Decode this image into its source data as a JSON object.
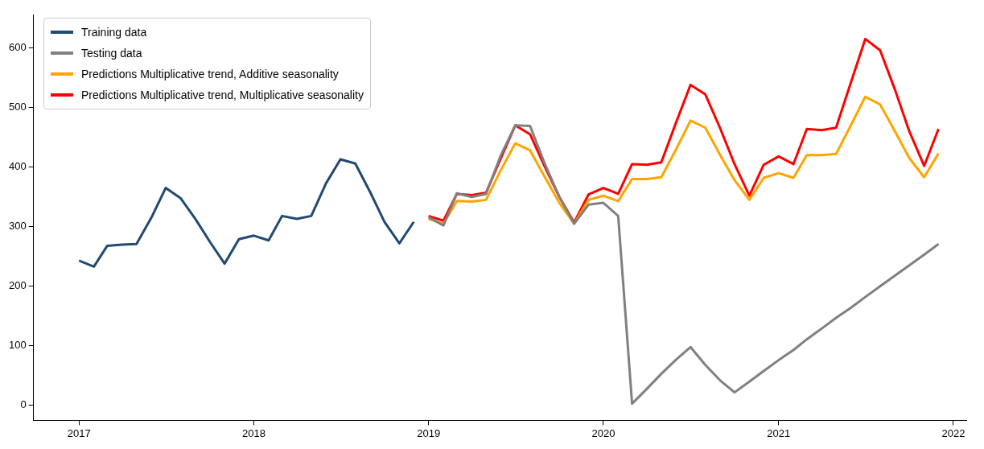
{
  "chart_data": {
    "type": "line",
    "xlim": [
      "2016-09-28",
      "2022-01-28"
    ],
    "xticks": [
      "2017",
      "2018",
      "2019",
      "2020",
      "2021",
      "2022"
    ],
    "ylim": [
      -25,
      655
    ],
    "yticks": [
      0,
      100,
      200,
      300,
      400,
      500,
      600
    ],
    "grid": false,
    "legend": "top left",
    "marker": "none",
    "line_style": "solid",
    "series": [
      {
        "name": "Training data",
        "color": "#204a73",
        "x": [
          "2017-01",
          "2017-02",
          "2017-03",
          "2017-04",
          "2017-05",
          "2017-06",
          "2017-07",
          "2017-08",
          "2017-09",
          "2017-10",
          "2017-11",
          "2017-12",
          "2018-01",
          "2018-02",
          "2018-03",
          "2018-04",
          "2018-05",
          "2018-06",
          "2018-07",
          "2018-08",
          "2018-09",
          "2018-10",
          "2018-11",
          "2018-12"
        ],
        "values": [
          243,
          233,
          268,
          270,
          271,
          315,
          365,
          348,
          313,
          275,
          238,
          279,
          285,
          277,
          318,
          313,
          318,
          373,
          413,
          406,
          358,
          308,
          272,
          308
        ]
      },
      {
        "name": "Testing data",
        "color": "#808080",
        "x": [
          "2019-01",
          "2019-02",
          "2019-03",
          "2019-04",
          "2019-05",
          "2019-06",
          "2019-07",
          "2019-08",
          "2019-09",
          "2019-10",
          "2019-11",
          "2019-12",
          "2020-01",
          "2020-02",
          "2020-03",
          "2020-04",
          "2020-05",
          "2020-06",
          "2020-07",
          "2020-08",
          "2020-09",
          "2020-10",
          "2020-11",
          "2020-12",
          "2021-01",
          "2021-02",
          "2021-03",
          "2021-04",
          "2021-05",
          "2021-06",
          "2021-07",
          "2021-08",
          "2021-09",
          "2021-10",
          "2021-11",
          "2021-12"
        ],
        "values": [
          316,
          302,
          356,
          350,
          355,
          420,
          470,
          469,
          405,
          350,
          305,
          337,
          340,
          318,
          3,
          28,
          53,
          77,
          98,
          68,
          42,
          22,
          40,
          58,
          76,
          93,
          111,
          129,
          147,
          164,
          182,
          200,
          218,
          235,
          253,
          271
        ]
      },
      {
        "name": "Predictions Multiplicative trend, Additive seasonality",
        "color": "#ffa500",
        "x": [
          "2019-01",
          "2019-02",
          "2019-03",
          "2019-04",
          "2019-05",
          "2019-06",
          "2019-07",
          "2019-08",
          "2019-09",
          "2019-10",
          "2019-11",
          "2019-12",
          "2020-01",
          "2020-02",
          "2020-03",
          "2020-04",
          "2020-05",
          "2020-06",
          "2020-07",
          "2020-08",
          "2020-09",
          "2020-10",
          "2020-11",
          "2020-12",
          "2021-01",
          "2021-02",
          "2021-03",
          "2021-04",
          "2021-05",
          "2021-06",
          "2021-07",
          "2021-08",
          "2021-09",
          "2021-10",
          "2021-11",
          "2021-12"
        ],
        "values": [
          313,
          305,
          343,
          342,
          345,
          395,
          440,
          428,
          383,
          340,
          305,
          345,
          352,
          343,
          380,
          380,
          383,
          430,
          478,
          466,
          420,
          378,
          345,
          382,
          390,
          382,
          420,
          420,
          422,
          470,
          518,
          505,
          460,
          415,
          383,
          423
        ]
      },
      {
        "name": "Predictions Multiplicative trend, Multiplicative seasonality",
        "color": "#ff0000",
        "x": [
          "2019-01",
          "2019-02",
          "2019-03",
          "2019-04",
          "2019-05",
          "2019-06",
          "2019-07",
          "2019-08",
          "2019-09",
          "2019-10",
          "2019-11",
          "2019-12",
          "2020-01",
          "2020-02",
          "2020-03",
          "2020-04",
          "2020-05",
          "2020-06",
          "2020-07",
          "2020-08",
          "2020-09",
          "2020-10",
          "2020-11",
          "2020-12",
          "2021-01",
          "2021-02",
          "2021-03",
          "2021-04",
          "2021-05",
          "2021-06",
          "2021-07",
          "2021-08",
          "2021-09",
          "2021-10",
          "2021-11",
          "2021-12"
        ],
        "values": [
          318,
          310,
          355,
          353,
          357,
          415,
          470,
          455,
          400,
          350,
          307,
          354,
          365,
          355,
          405,
          404,
          408,
          475,
          538,
          522,
          465,
          405,
          352,
          404,
          418,
          405,
          464,
          462,
          466,
          542,
          615,
          596,
          530,
          460,
          402,
          464
        ]
      }
    ]
  }
}
